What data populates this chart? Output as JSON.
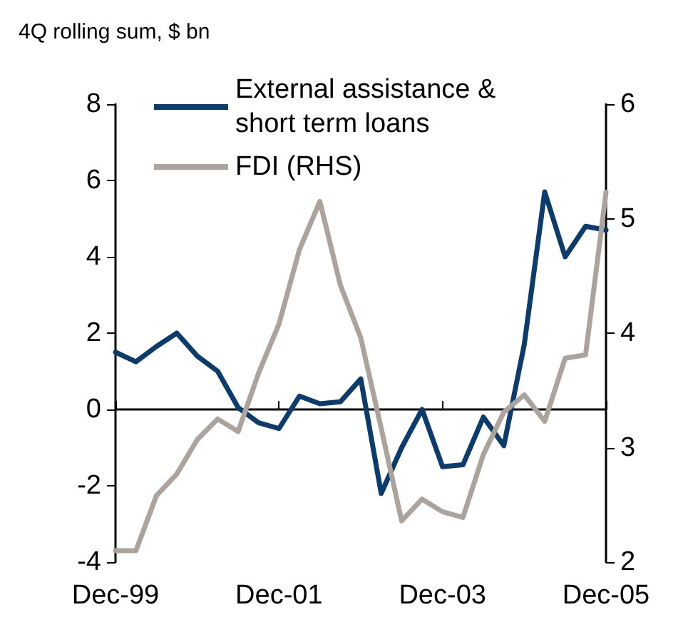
{
  "chart_data": {
    "type": "line",
    "ylabel": "4Q rolling sum, $ bn",
    "categories": [
      "Dec-99",
      null,
      null,
      null,
      null,
      null,
      null,
      null,
      "Dec-01",
      null,
      null,
      null,
      null,
      null,
      null,
      null,
      "Dec-03",
      null,
      null,
      null,
      null,
      null,
      null,
      null,
      "Dec-05"
    ],
    "series": [
      {
        "name": "External assistance & short term loans",
        "color": "#0b3c6b",
        "values": [
          1.5,
          1.25,
          1.65,
          2.0,
          1.4,
          1.0,
          0.05,
          -0.35,
          -0.5,
          0.35,
          0.15,
          0.2,
          0.8,
          -2.2,
          -1.0,
          0.0,
          -1.5,
          -1.45,
          -0.2,
          -0.95,
          1.7,
          5.7,
          4.0,
          4.8,
          4.7
        ]
      },
      {
        "name": "FDI (RHS)",
        "color": "#aba39c",
        "axis": "y2",
        "values": [
          2.1,
          2.1,
          2.58,
          2.77,
          3.07,
          3.25,
          3.14,
          3.65,
          4.08,
          4.73,
          5.15,
          4.42,
          3.96,
          3.17,
          2.36,
          2.55,
          2.44,
          2.39,
          2.94,
          3.31,
          3.46,
          3.23,
          3.78,
          3.81,
          5.23
        ]
      }
    ],
    "ylim": [
      -4,
      8
    ],
    "yticks": [
      -4,
      -2,
      0,
      2,
      4,
      6,
      8
    ],
    "y2lim": [
      2,
      6
    ],
    "y2ticks": [
      2,
      3,
      4,
      5,
      6
    ],
    "legend": "top left",
    "marker": "none",
    "line_style": "solid"
  }
}
